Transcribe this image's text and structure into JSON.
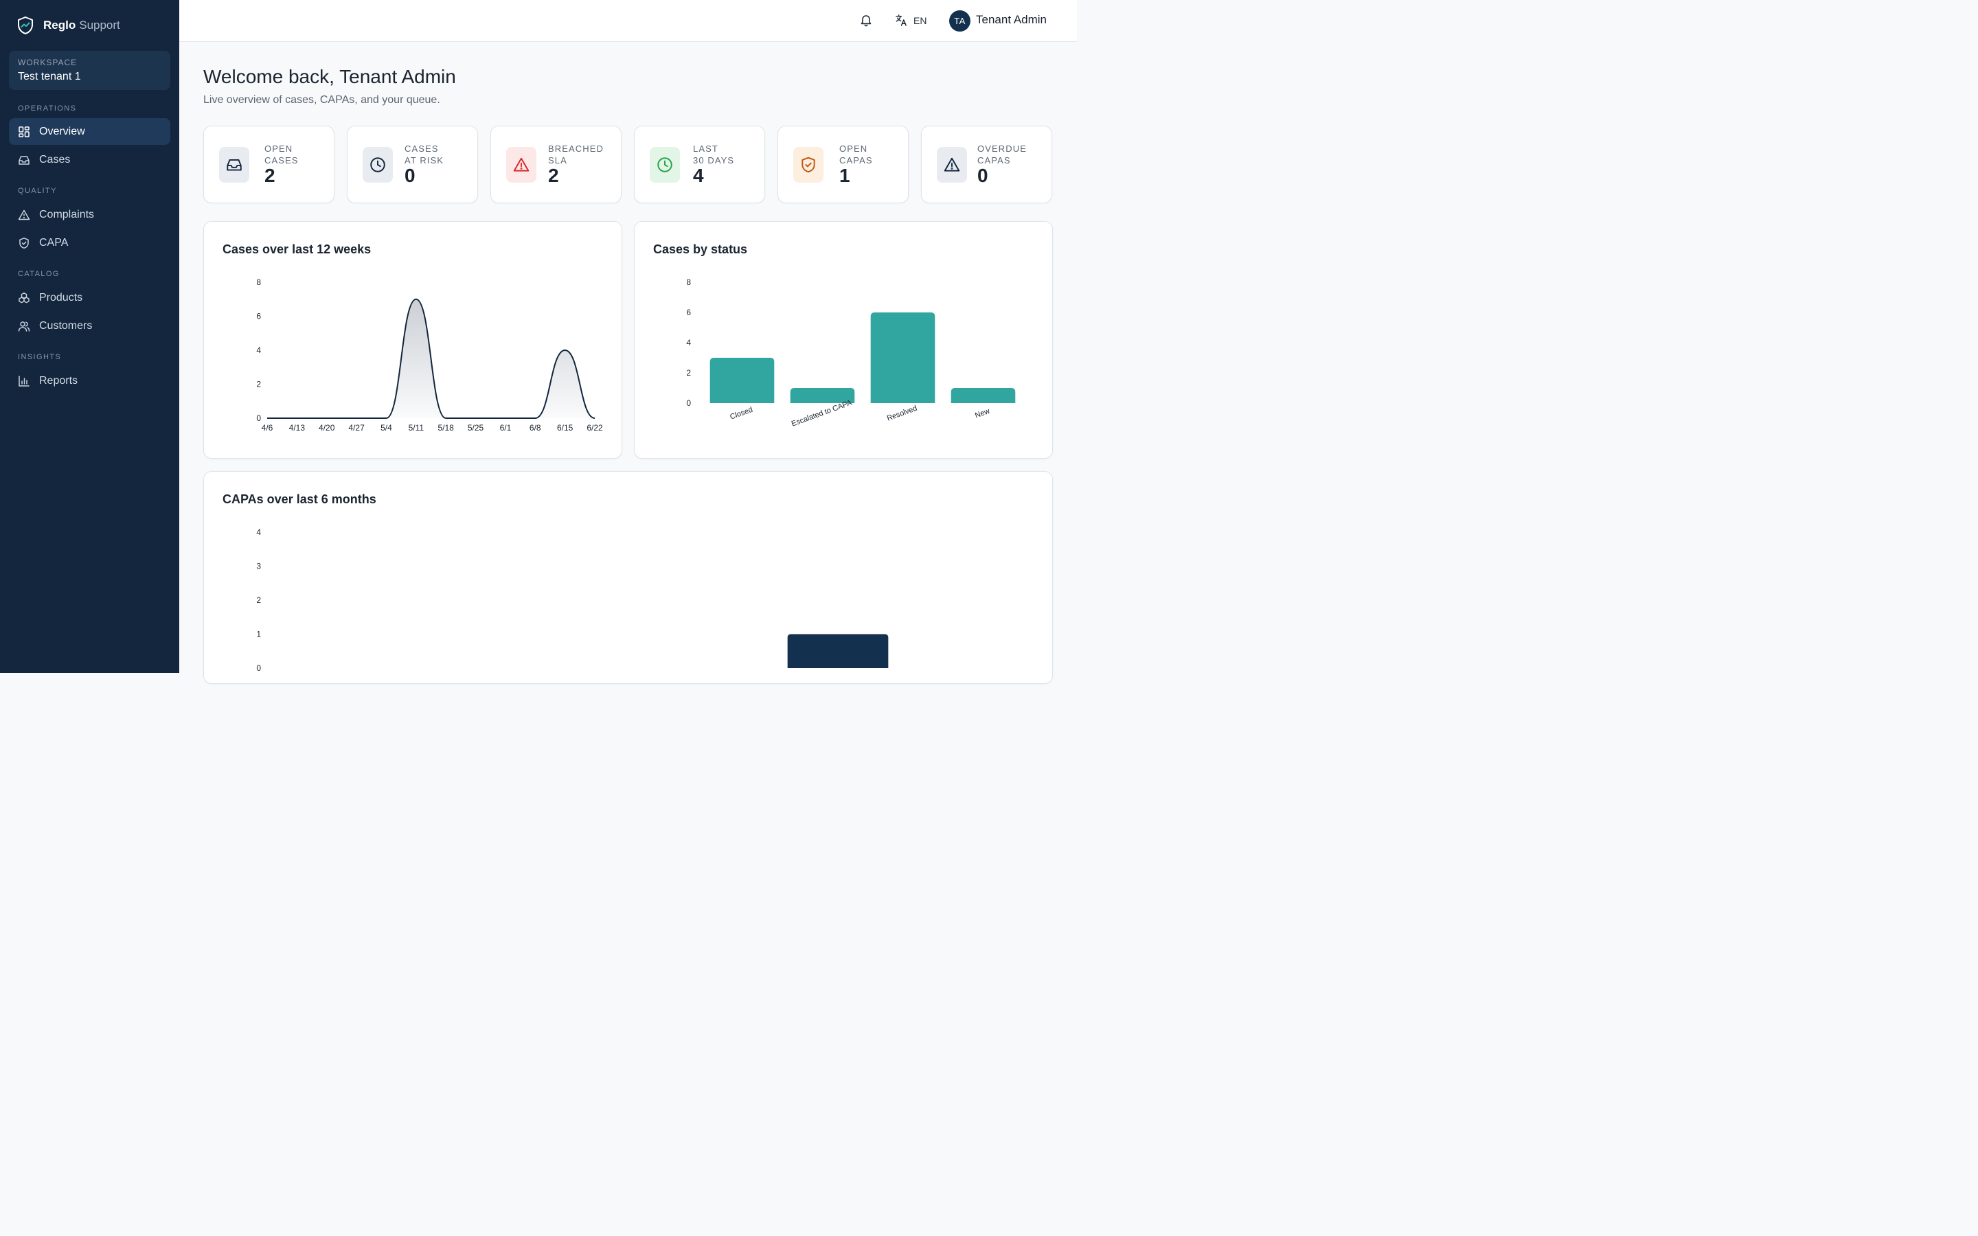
{
  "brand": {
    "name_bold": "Reglo",
    "name_light": "Support"
  },
  "workspace": {
    "label": "WORKSPACE",
    "value": "Test tenant 1"
  },
  "sidebar": {
    "sections": [
      {
        "label": "OPERATIONS",
        "items": [
          {
            "label": "Overview",
            "icon": "grid-icon",
            "active": true
          },
          {
            "label": "Cases",
            "icon": "inbox-icon"
          }
        ]
      },
      {
        "label": "QUALITY",
        "items": [
          {
            "label": "Complaints",
            "icon": "alert-triangle-icon"
          },
          {
            "label": "CAPA",
            "icon": "shield-check-icon"
          }
        ]
      },
      {
        "label": "CATALOG",
        "items": [
          {
            "label": "Products",
            "icon": "boxes-icon"
          },
          {
            "label": "Customers",
            "icon": "users-icon"
          }
        ]
      },
      {
        "label": "INSIGHTS",
        "items": [
          {
            "label": "Reports",
            "icon": "bar-chart-icon"
          }
        ]
      }
    ]
  },
  "topbar": {
    "language": "EN",
    "avatar_initials": "TA",
    "user_name": "Tenant Admin"
  },
  "page": {
    "title": "Welcome back, Tenant Admin",
    "subtitle": "Live overview of cases, CAPAs, and your queue."
  },
  "kpis": [
    {
      "label": "OPEN CASES",
      "value": "2",
      "icon": "inbox-icon",
      "color": "#13263e",
      "bg": "#e8ecf1"
    },
    {
      "label": "CASES AT RISK",
      "value": "0",
      "icon": "clock-icon",
      "color": "#13263e",
      "bg": "#e8ecf1"
    },
    {
      "label": "BREACHED SLA",
      "value": "2",
      "icon": "alert-triangle-icon",
      "color": "#dc2626",
      "bg": "#fde8e8"
    },
    {
      "label": "LAST 30 DAYS",
      "value": "4",
      "icon": "clock-icon",
      "color": "#22a447",
      "bg": "#e3f5e7"
    },
    {
      "label": "OPEN CAPAS",
      "value": "1",
      "icon": "shield-check-icon",
      "color": "#c2560c",
      "bg": "#fdefdf"
    },
    {
      "label": "OVERDUE CAPAS",
      "value": "0",
      "icon": "alert-triangle-icon",
      "color": "#13263e",
      "bg": "#e8ecf1"
    }
  ],
  "cards": {
    "weekly": "Cases over last 12 weeks",
    "status": "Cases by status",
    "capa": "CAPAs over last 6 months"
  },
  "chart_data": [
    {
      "type": "area",
      "title": "Cases over last 12 weeks",
      "x": [
        "4/6",
        "4/13",
        "4/20",
        "4/27",
        "5/4",
        "5/11",
        "5/18",
        "5/25",
        "6/1",
        "6/8",
        "6/15",
        "6/22"
      ],
      "values": [
        0,
        0,
        0,
        0,
        0,
        7,
        0,
        0,
        0,
        0,
        4,
        0
      ],
      "ylim": [
        0,
        8
      ],
      "yticks": [
        0,
        2,
        4,
        6,
        8
      ],
      "color": "#13263e"
    },
    {
      "type": "bar",
      "title": "Cases by status",
      "categories": [
        "Closed",
        "Escalated to CAPA",
        "Resolved",
        "New"
      ],
      "values": [
        3,
        1,
        6,
        1
      ],
      "ylim": [
        0,
        8
      ],
      "yticks": [
        0,
        2,
        4,
        6,
        8
      ],
      "color": "#31a6a0"
    },
    {
      "type": "bar",
      "title": "CAPAs over last 6 months",
      "values": [
        0,
        0,
        0,
        0,
        1,
        0
      ],
      "ylim": [
        0,
        4
      ],
      "yticks": [
        0,
        1,
        2,
        3,
        4
      ],
      "color": "#13314f"
    }
  ]
}
